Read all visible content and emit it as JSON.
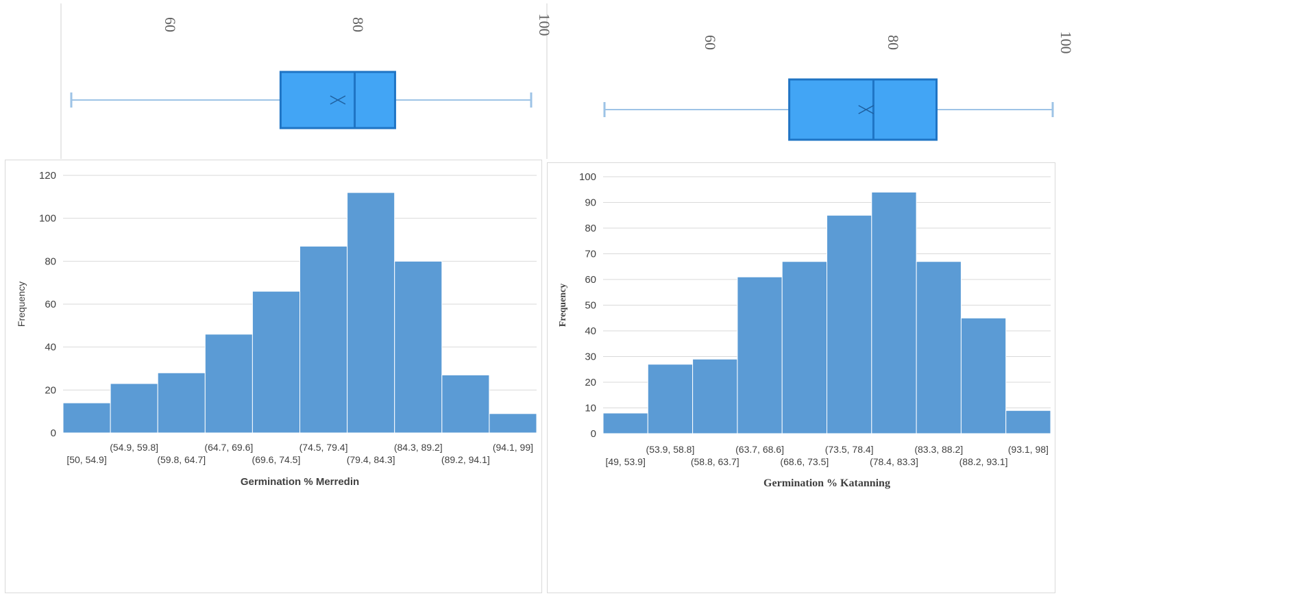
{
  "chart_data": [
    {
      "type": "box",
      "axis_ticks": [
        "60",
        "80",
        "100"
      ],
      "axis_range": [
        50,
        99
      ],
      "min": 50,
      "q1": 72.3,
      "median": 80.2,
      "q3": 84.5,
      "max": 99,
      "mean": 78.4
    },
    {
      "type": "bar",
      "ylabel": "Frequency",
      "xlabel": "Germination % Merredin",
      "ylim": [
        0,
        120
      ],
      "yticks": [
        0,
        20,
        40,
        60,
        80,
        100,
        120
      ],
      "categories": [
        "[50, 54.9]",
        "(54.9, 59.8]",
        "(59.8, 64.7]",
        "(64.7, 69.6]",
        "(69.6, 74.5]",
        "(74.5, 79.4]",
        "(79.4, 84.3]",
        "(84.3, 89.2]",
        "(89.2, 94.1]",
        "(94.1, 99]"
      ],
      "values": [
        14,
        23,
        28,
        46,
        66,
        87,
        112,
        80,
        27,
        9
      ],
      "grid": true,
      "bar_color": "#5b9bd5"
    },
    {
      "type": "box",
      "axis_ticks": [
        "60",
        "80",
        "100"
      ],
      "axis_range": [
        49,
        98
      ],
      "min": 49,
      "q1": 69.2,
      "median": 78.4,
      "q3": 85.3,
      "max": 98,
      "mean": 77.6
    },
    {
      "type": "bar",
      "ylabel": "Frequency",
      "xlabel": "Germination % Katanning",
      "ylim": [
        0,
        100
      ],
      "yticks": [
        0,
        10,
        20,
        30,
        40,
        50,
        60,
        70,
        80,
        90,
        100
      ],
      "categories": [
        "[49, 53.9]",
        "(53.9, 58.8]",
        "(58.8, 63.7]",
        "(63.7, 68.6]",
        "(68.6, 73.5]",
        "(73.5, 78.4]",
        "(78.4, 83.3]",
        "(83.3, 88.2]",
        "(88.2, 93.1]",
        "(93.1, 98]"
      ],
      "values": [
        8,
        27,
        29,
        61,
        67,
        85,
        94,
        67,
        45,
        9
      ],
      "grid": true,
      "bar_color": "#5b9bd5"
    }
  ]
}
